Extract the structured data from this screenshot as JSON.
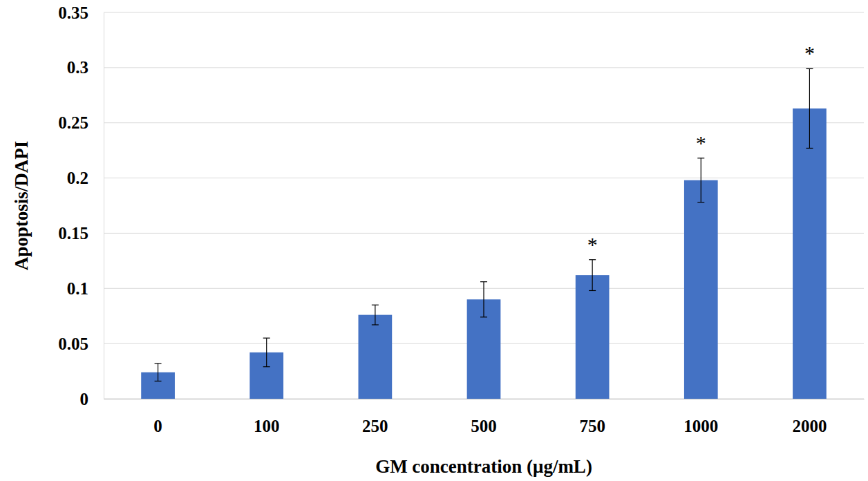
{
  "chart_data": {
    "type": "bar",
    "x_label": "GM concentration (μg/mL)",
    "y_label": "Apoptosis/DAPI",
    "categories": [
      "0",
      "100",
      "250",
      "500",
      "750",
      "1000",
      "2000"
    ],
    "values": [
      0.024,
      0.042,
      0.076,
      0.09,
      0.112,
      0.198,
      0.263
    ],
    "errors": [
      0.008,
      0.013,
      0.009,
      0.016,
      0.014,
      0.02,
      0.036
    ],
    "significance": [
      null,
      null,
      null,
      null,
      "*",
      "*",
      "*"
    ],
    "color": "#4472c4",
    "ylim": [
      0,
      0.35
    ],
    "yticks": [
      0,
      0.05,
      0.1,
      0.15,
      0.2,
      0.25,
      0.3,
      0.35
    ],
    "grid": true
  }
}
